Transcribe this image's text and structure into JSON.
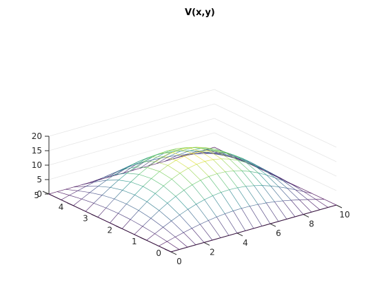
{
  "chart_data": {
    "type": "surface-mesh",
    "title": "V(x,y)",
    "function": "V(x,y) = 16 * sin(pi*x/10) * sin(pi*y/5)",
    "x": {
      "lim": [
        0,
        10
      ],
      "ticks": [
        0,
        2,
        4,
        6,
        8,
        10
      ],
      "samples": 21
    },
    "y": {
      "lim": [
        0,
        5
      ],
      "ticks": [
        0,
        1,
        2,
        3,
        4,
        5
      ],
      "samples": 11
    },
    "z": {
      "lim": [
        0,
        20
      ],
      "ticks": [
        0,
        5,
        10,
        15,
        20
      ],
      "max_value": 16
    },
    "colormap": [
      "#440154",
      "#3b528b",
      "#21918c",
      "#5ec962",
      "#fde725"
    ],
    "grid": true
  }
}
